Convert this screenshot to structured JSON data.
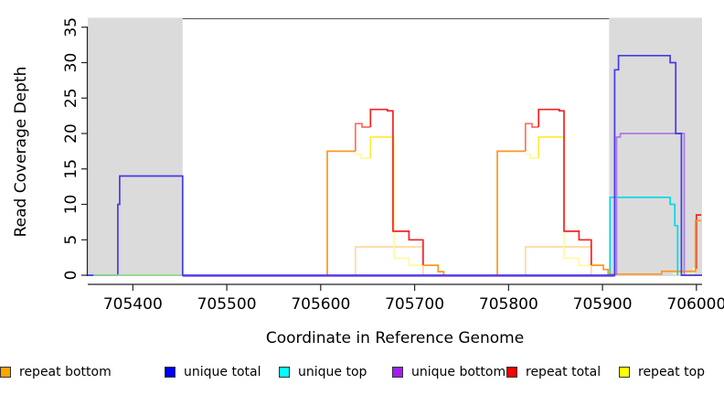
{
  "chart_data": {
    "type": "line",
    "subtype": "step-coverage-plot",
    "title": "",
    "xlabel": "Coordinate in Reference Genome",
    "ylabel": "Read Coverage Depth",
    "xlim": [
      705352,
      706006
    ],
    "ylim": [
      0,
      36.3
    ],
    "x_ticks": [
      705400,
      705500,
      705600,
      705700,
      705800,
      705900,
      706000
    ],
    "y_ticks": [
      0,
      5,
      10,
      15,
      20,
      25,
      30,
      35
    ],
    "grid": "off",
    "legend_position": "bottom",
    "shaded_regions": [
      {
        "from": 705352,
        "to": 705453,
        "color": "#DBDBDB"
      },
      {
        "from": 705907,
        "to": 706006,
        "color": "#DBDBDB"
      }
    ],
    "boundary_line": {
      "depth": 36.2,
      "color": "#5A5A5A"
    },
    "series": [
      {
        "name": "repeat bottom (pale)",
        "color": "#FFD9A0",
        "paths": [
          [
            [
              705637,
              0
            ],
            [
              705637,
              4
            ],
            [
              705709,
              4
            ],
            [
              705709,
              0
            ]
          ],
          [
            [
              705818,
              0
            ],
            [
              705818,
              4
            ],
            [
              705888,
              4
            ],
            [
              705888,
              0
            ]
          ]
        ]
      },
      {
        "name": "repeat top (pale)",
        "color": "#FFFB9E",
        "paths": [
          [
            [
              705637,
              17.1
            ],
            [
              705643,
              17.1
            ],
            [
              705643,
              16.5
            ],
            [
              705653,
              16.5
            ]
          ],
          [
            [
              705678,
              19.5
            ],
            [
              705678,
              2.4
            ],
            [
              705694,
              2.4
            ],
            [
              705694,
              1.4
            ],
            [
              705709,
              1.4
            ]
          ],
          [
            [
              705818,
              17.1
            ],
            [
              705823,
              17.1
            ],
            [
              705823,
              16.5
            ],
            [
              705832,
              16.5
            ]
          ],
          [
            [
              705859,
              19.5
            ],
            [
              705859,
              2.4
            ],
            [
              705875,
              2.4
            ],
            [
              705875,
              1.4
            ],
            [
              705888,
              1.4
            ]
          ],
          [
            [
              705975,
              0.2
            ],
            [
              705997,
              0.2
            ],
            [
              705997,
              0.9
            ],
            [
              706000,
              0.9
            ]
          ]
        ]
      },
      {
        "name": "repeat total (pale)",
        "color": "#FF6F5F",
        "paths": [
          [
            [
              705637,
              17.5
            ],
            [
              705637,
              21.4
            ],
            [
              705644,
              21.4
            ],
            [
              705644,
              20.9
            ],
            [
              705653,
              20.9
            ]
          ],
          [
            [
              705818,
              17.5
            ],
            [
              705818,
              21.4
            ],
            [
              705825,
              21.4
            ],
            [
              705825,
              20.9
            ],
            [
              705832,
              20.9
            ]
          ]
        ]
      },
      {
        "name": "repeat top",
        "color": "#FFEC3D",
        "paths": [
          [
            [
              705653,
              16.5
            ],
            [
              705653,
              19.5
            ],
            [
              705678,
              19.5
            ]
          ],
          [
            [
              705832,
              16.5
            ],
            [
              705832,
              19.5
            ],
            [
              705859,
              19.5
            ]
          ]
        ]
      },
      {
        "name": "repeat total",
        "color": "#F42222",
        "paths": [
          [
            [
              705653,
              20.9
            ],
            [
              705653,
              23.4
            ],
            [
              705671,
              23.4
            ],
            [
              705671,
              23.2
            ],
            [
              705677,
              23.2
            ],
            [
              705677,
              6.2
            ],
            [
              705694,
              6.2
            ],
            [
              705694,
              5.0
            ],
            [
              705709,
              5.0
            ],
            [
              705709,
              1.4
            ]
          ],
          [
            [
              705832,
              20.9
            ],
            [
              705832,
              23.4
            ],
            [
              705854,
              23.4
            ],
            [
              705854,
              23.2
            ],
            [
              705859,
              23.2
            ],
            [
              705859,
              6.2
            ],
            [
              705875,
              6.2
            ],
            [
              705875,
              5.0
            ],
            [
              705888,
              5.0
            ],
            [
              705888,
              1.4
            ]
          ],
          [
            [
              706000,
              0.9
            ],
            [
              706000,
              8.5
            ],
            [
              706005,
              8.5
            ]
          ]
        ]
      },
      {
        "name": "repeat bottom",
        "color": "#FF9520",
        "paths": [
          [
            [
              705607,
              0
            ],
            [
              705607,
              17.5
            ],
            [
              705637,
              17.5
            ]
          ],
          [
            [
              705709,
              1.4
            ],
            [
              705725,
              1.4
            ],
            [
              705725,
              0.5
            ],
            [
              705731,
              0.5
            ],
            [
              705731,
              0
            ]
          ],
          [
            [
              705788,
              0
            ],
            [
              705788,
              17.5
            ],
            [
              705818,
              17.5
            ]
          ],
          [
            [
              705888,
              1.4
            ],
            [
              705901,
              1.4
            ],
            [
              705901,
              0.8
            ],
            [
              705906,
              0.8
            ],
            [
              705906,
              0.15
            ],
            [
              705963,
              0.15
            ],
            [
              705963,
              0.55
            ],
            [
              705999,
              0.55
            ],
            [
              705999,
              7.7
            ],
            [
              706005,
              7.7
            ]
          ]
        ]
      },
      {
        "name": "unique bottom baseline",
        "color": "#AC7BE4",
        "paths": [
          [
            [
              705453,
              -0.15
            ],
            [
              705913,
              -0.15
            ]
          ]
        ]
      },
      {
        "name": "unique top",
        "color": "#00DCE8",
        "paths": [
          [
            [
              705908,
              0
            ],
            [
              705908,
              11
            ],
            [
              705972,
              11
            ],
            [
              705972,
              10
            ],
            [
              705977,
              10
            ],
            [
              705977,
              7
            ],
            [
              705980,
              7
            ],
            [
              705980,
              0
            ]
          ]
        ]
      },
      {
        "name": "unique bottom",
        "color": "#AC7BE4",
        "paths": [
          [
            [
              705915,
              0
            ],
            [
              705915,
              19.5
            ],
            [
              705919,
              19.5
            ],
            [
              705919,
              20
            ],
            [
              705987,
              20
            ],
            [
              705987,
              0
            ]
          ]
        ]
      },
      {
        "name": "unique total",
        "color": "#443BE8",
        "paths": [
          [
            [
              705352,
              0
            ],
            [
              705384,
              0
            ],
            [
              705384,
              10
            ],
            [
              705386,
              10
            ],
            [
              705386,
              14
            ],
            [
              705453,
              14
            ],
            [
              705453,
              0
            ],
            [
              705913,
              0
            ],
            [
              705913,
              29
            ],
            [
              705917,
              29
            ],
            [
              705917,
              31
            ],
            [
              705972,
              31
            ],
            [
              705972,
              30
            ],
            [
              705978,
              30
            ],
            [
              705978,
              20
            ],
            [
              705984,
              20
            ],
            [
              705984,
              0
            ],
            [
              706006,
              0
            ]
          ]
        ]
      },
      {
        "name": "overlap baseline (green)",
        "color": "#96D98C",
        "paths": [
          [
            [
              705358,
              0
            ],
            [
              705452,
              0
            ]
          ]
        ]
      }
    ]
  },
  "legend": {
    "items": [
      {
        "label": "unique total",
        "color": "#0000FF"
      },
      {
        "label": "unique top",
        "color": "#00FFFF"
      },
      {
        "label": "unique bottom",
        "color": "#A020F0"
      },
      {
        "label": "repeat total",
        "color": "#FF0000"
      },
      {
        "label": "repeat top",
        "color": "#FFFF00"
      },
      {
        "label": "repeat bottom",
        "color": "#FFA500"
      }
    ]
  }
}
